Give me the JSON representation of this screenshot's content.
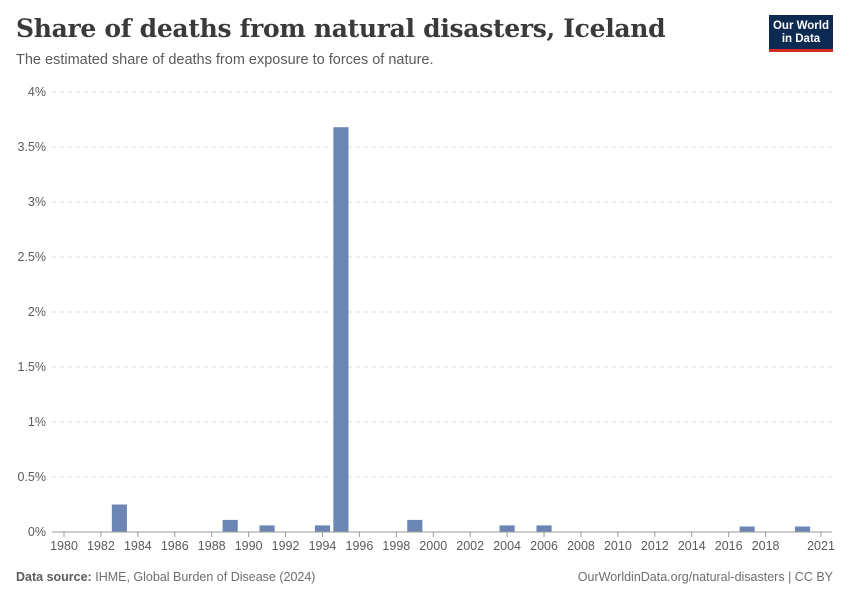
{
  "header": {
    "title": "Share of deaths from natural disasters, Iceland",
    "subtitle": "The estimated share of deaths from exposure to forces of nature."
  },
  "logo": {
    "line1": "Our World",
    "line2": "in Data"
  },
  "footer": {
    "source_label": "Data source:",
    "source_text": "IHME, Global Burden of Disease (2024)",
    "link_text": "OurWorldinData.org/natural-disasters | CC BY"
  },
  "colors": {
    "bar": "#6b86b3",
    "grid": "#dddddd",
    "axis": "#999999",
    "text": "#5b5b5b"
  },
  "chart_data": {
    "type": "bar",
    "title": "Share of deaths from natural disasters, Iceland",
    "xlabel": "",
    "ylabel": "",
    "ylim": [
      0,
      4
    ],
    "grid": true,
    "x_range": [
      1980,
      2021
    ],
    "y_ticks": [
      {
        "value": 0,
        "label": "0%"
      },
      {
        "value": 0.5,
        "label": "0.5%"
      },
      {
        "value": 1,
        "label": "1%"
      },
      {
        "value": 1.5,
        "label": "1.5%"
      },
      {
        "value": 2,
        "label": "2%"
      },
      {
        "value": 2.5,
        "label": "2.5%"
      },
      {
        "value": 3,
        "label": "3%"
      },
      {
        "value": 3.5,
        "label": "3.5%"
      },
      {
        "value": 4,
        "label": "4%"
      }
    ],
    "x_ticks": [
      "1980",
      "1982",
      "1984",
      "1986",
      "1988",
      "1990",
      "1992",
      "1994",
      "1996",
      "1998",
      "2000",
      "2002",
      "2004",
      "2006",
      "2008",
      "2010",
      "2012",
      "2014",
      "2016",
      "2018",
      "2021"
    ],
    "series": [
      {
        "name": "Iceland",
        "points": [
          {
            "year": 1983,
            "value": 0.25
          },
          {
            "year": 1989,
            "value": 0.11
          },
          {
            "year": 1991,
            "value": 0.06
          },
          {
            "year": 1994,
            "value": 0.06
          },
          {
            "year": 1995,
            "value": 3.68
          },
          {
            "year": 1999,
            "value": 0.11
          },
          {
            "year": 2004,
            "value": 0.06
          },
          {
            "year": 2006,
            "value": 0.06
          },
          {
            "year": 2017,
            "value": 0.05
          },
          {
            "year": 2020,
            "value": 0.05
          }
        ]
      }
    ]
  }
}
